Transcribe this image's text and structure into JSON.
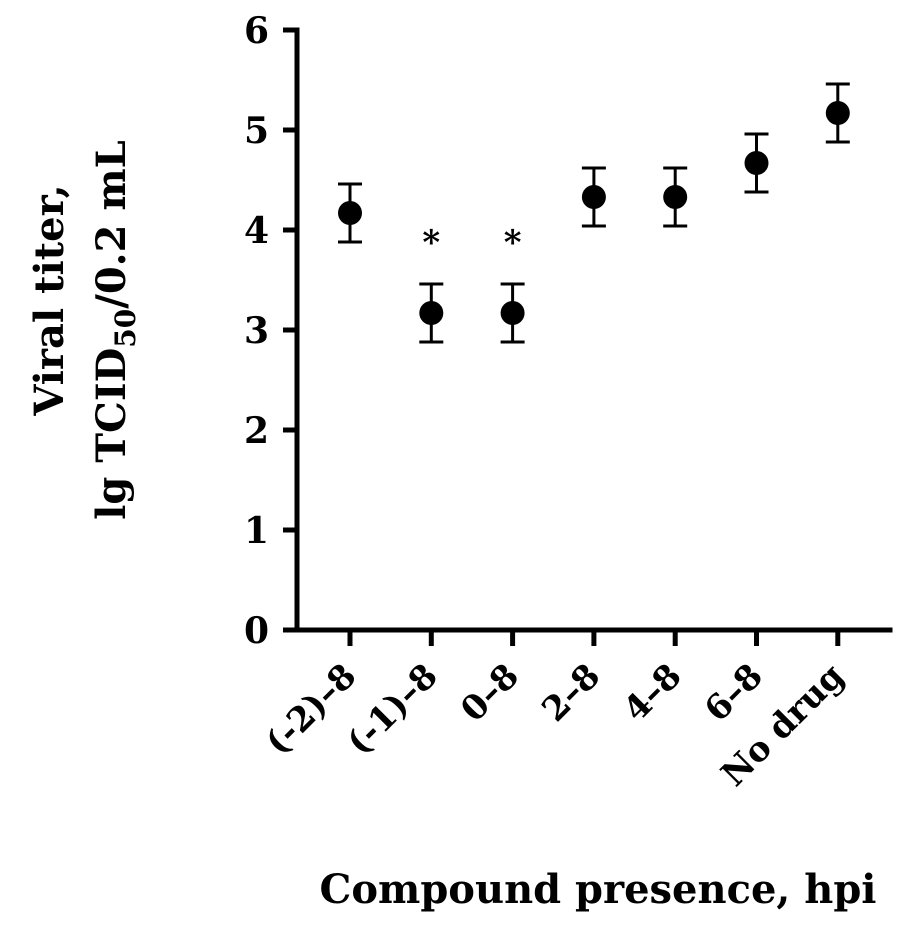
{
  "chart_data": {
    "type": "scatter",
    "title": "",
    "xlabel": "Compound presence, hpi",
    "ylabel_line1": "Viral titer,",
    "ylabel_line2_prefix": "lg TCID",
    "ylabel_line2_subscript": "50",
    "ylabel_line2_suffix": "/0.2 mL",
    "ylim": [
      0,
      6
    ],
    "yticks": [
      "0",
      "1",
      "2",
      "3",
      "4",
      "5",
      "6"
    ],
    "grid": false,
    "legend": "none",
    "marker_color": "#000000",
    "categories": [
      "(-2)–8",
      "(-1)–8",
      "0–8",
      "2–8",
      "4–8",
      "6–8",
      "No drug"
    ],
    "values": [
      4.17,
      3.17,
      3.17,
      4.33,
      4.33,
      4.67,
      5.17
    ],
    "errors": [
      0.29,
      0.29,
      0.29,
      0.29,
      0.29,
      0.29,
      0.29
    ],
    "significance": [
      "",
      "*",
      "*",
      "",
      "",
      "",
      ""
    ]
  }
}
